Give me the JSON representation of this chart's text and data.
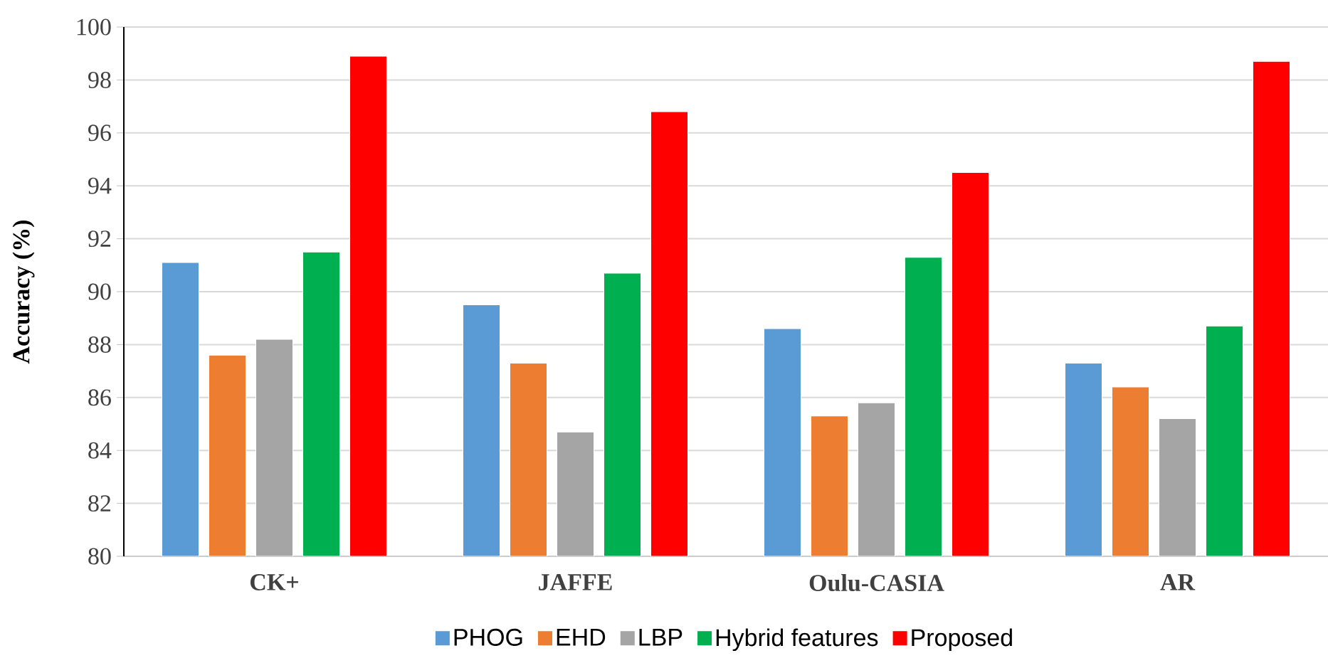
{
  "chart_data": {
    "type": "bar",
    "ylabel": "Accuracy (%)",
    "categories": [
      "CK+",
      "JAFFE",
      "Oulu-CASIA",
      "AR"
    ],
    "series": [
      {
        "name": "PHOG",
        "color": "#5b9bd5",
        "values": [
          91.1,
          89.5,
          88.6,
          87.3
        ]
      },
      {
        "name": "EHD",
        "color": "#ed7d31",
        "values": [
          87.6,
          87.3,
          85.3,
          86.4
        ]
      },
      {
        "name": "LBP",
        "color": "#a5a5a5",
        "values": [
          88.2,
          84.7,
          85.8,
          85.2
        ]
      },
      {
        "name": "Hybrid features",
        "color": "#00b050",
        "values": [
          91.5,
          90.7,
          91.3,
          88.7
        ]
      },
      {
        "name": "Proposed",
        "color": "#ff0000",
        "values": [
          98.9,
          96.8,
          94.5,
          98.7
        ]
      }
    ],
    "ylim": [
      80,
      100
    ],
    "yticks": [
      80,
      82,
      84,
      86,
      88,
      90,
      92,
      94,
      96,
      98,
      100
    ],
    "grid": "y",
    "legend": "bottom"
  }
}
